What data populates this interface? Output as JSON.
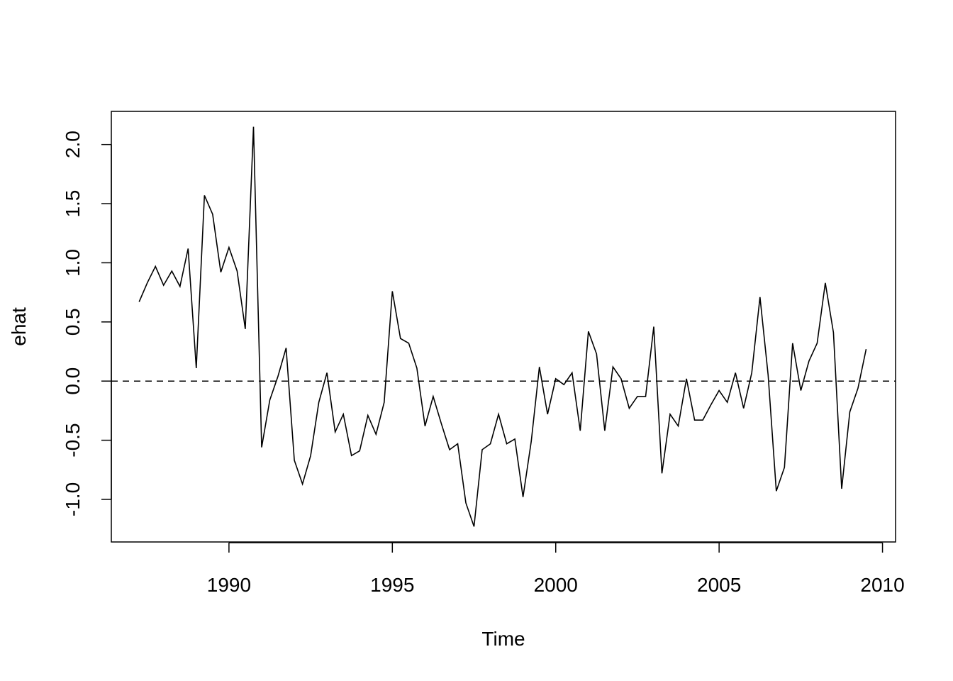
{
  "chart_data": {
    "type": "line",
    "xlabel": "Time",
    "ylabel": "ehat",
    "xlim": [
      1986.4,
      2010.4
    ],
    "ylim": [
      -1.36,
      2.28
    ],
    "x_ticks": [
      1990,
      1995,
      2000,
      2005,
      2010
    ],
    "x_tick_labels": [
      "1990",
      "1995",
      "2000",
      "2005",
      "2010"
    ],
    "y_ticks": [
      -1.0,
      -0.5,
      0.0,
      0.5,
      1.0,
      1.5,
      2.0
    ],
    "y_tick_labels": [
      "-1.0",
      "-0.5",
      "0.0",
      "0.5",
      "1.0",
      "1.5",
      "2.0"
    ],
    "reference_line": {
      "y": 0,
      "style": "dashed"
    },
    "grid": false,
    "frequency": "quarterly",
    "start": 1987.25,
    "series": [
      {
        "color": "#000000",
        "values": [
          0.67,
          0.83,
          0.97,
          0.81,
          0.93,
          0.8,
          1.12,
          0.11,
          1.57,
          1.41,
          0.92,
          1.13,
          0.93,
          0.44,
          2.15,
          -0.56,
          -0.16,
          0.04,
          0.28,
          -0.67,
          -0.87,
          -0.63,
          -0.18,
          0.07,
          -0.43,
          -0.28,
          -0.63,
          -0.59,
          -0.29,
          -0.45,
          -0.18,
          0.76,
          0.36,
          0.32,
          0.11,
          -0.38,
          -0.13,
          -0.36,
          -0.58,
          -0.53,
          -1.03,
          -1.23,
          -0.58,
          -0.53,
          -0.28,
          -0.53,
          -0.49,
          -0.98,
          -0.51,
          0.12,
          -0.28,
          0.02,
          -0.03,
          0.07,
          -0.42,
          0.42,
          0.23,
          -0.42,
          0.12,
          0.02,
          -0.23,
          -0.13,
          -0.13,
          0.46,
          -0.78,
          -0.28,
          -0.38,
          0.02,
          -0.33,
          -0.33,
          -0.2,
          -0.08,
          -0.18,
          0.07,
          -0.23,
          0.07,
          0.71,
          0.05,
          -0.93,
          -0.73,
          0.32,
          -0.08,
          0.17,
          0.32,
          0.83,
          0.41,
          -0.91,
          -0.26,
          -0.06,
          0.27
        ]
      }
    ]
  }
}
